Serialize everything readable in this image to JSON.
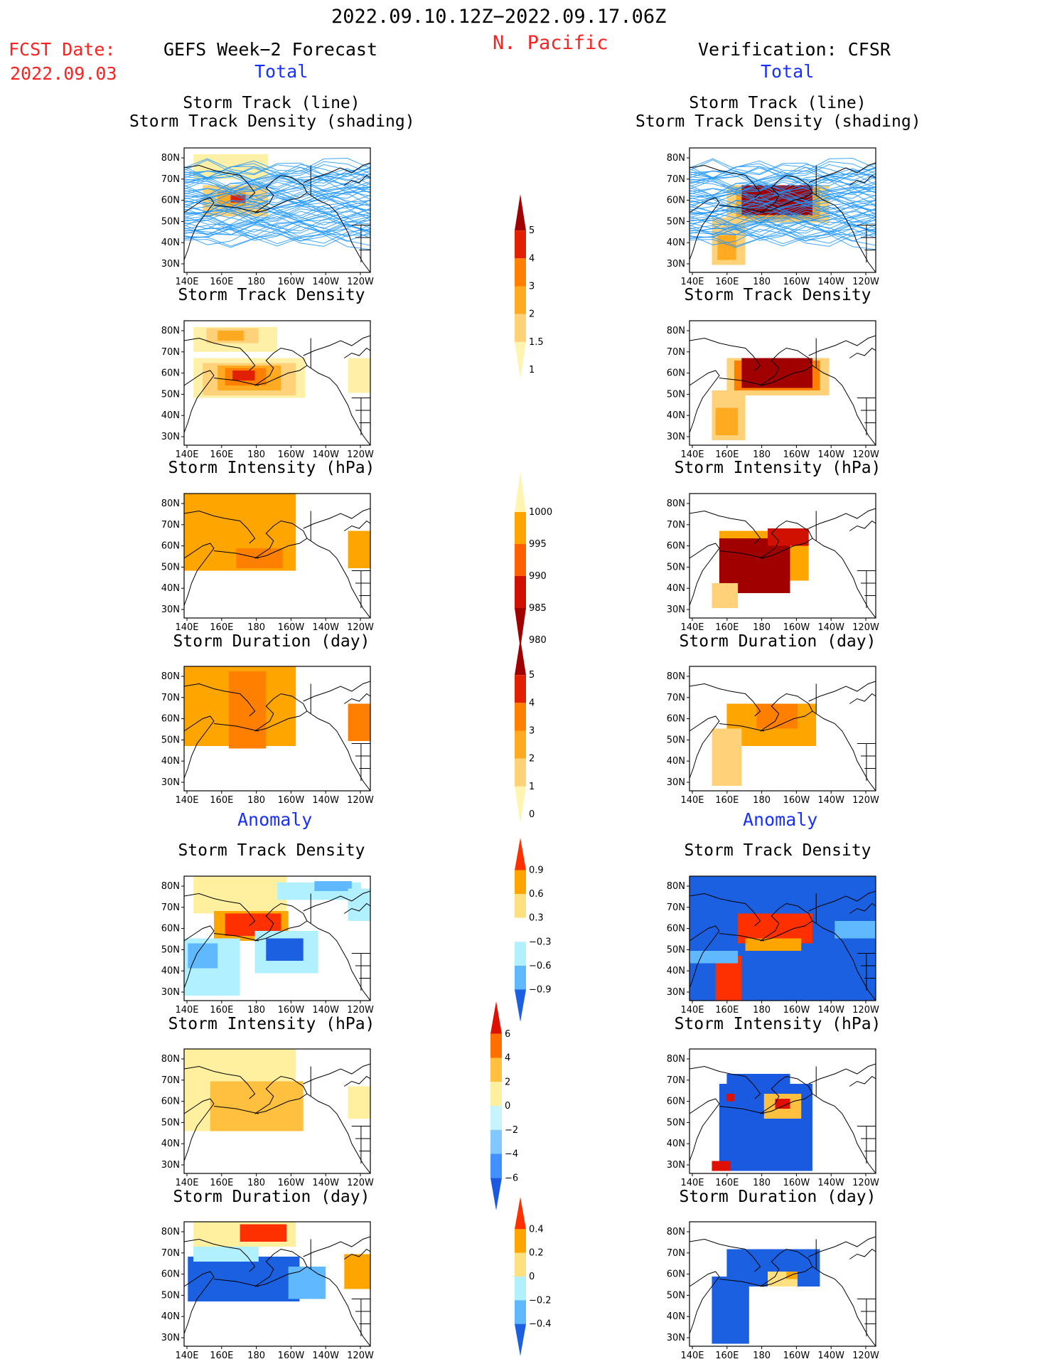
{
  "header": {
    "period": "2022.09.10.12Z−2022.09.17.06Z",
    "region": "N. Pacific",
    "fcst_label": "FCST Date:",
    "fcst_date": "2022.09.03",
    "left_title": "GEFS Week−2 Forecast",
    "right_title": "Verification: CFSR",
    "total_left": "Total",
    "total_right": "Total",
    "anomaly_left": "Anomaly",
    "anomaly_right": "Anomaly"
  },
  "panel_titles": {
    "track1": "Storm Track (line)",
    "track2": "Storm Track Density (shading)",
    "density": "Storm Track Density",
    "intensity": "Storm Intensity (hPa)",
    "duration": "Storm Duration (day)"
  },
  "axes": {
    "lat_labels": [
      "80N",
      "70N",
      "60N",
      "50N",
      "40N",
      "30N"
    ],
    "lon_labels": [
      "140E",
      "160E",
      "180",
      "160W",
      "140W",
      "120W"
    ]
  },
  "colorbars": {
    "density_total": {
      "ticks": [
        "5",
        "4",
        "3",
        "2",
        "1.5",
        "1"
      ],
      "colors": [
        "#a00000",
        "#e02000",
        "#ff7f00",
        "#ffaa20",
        "#ffd27a",
        "#fff5b0"
      ]
    },
    "intensity_total": {
      "ticks": [
        "1000",
        "995",
        "990",
        "985",
        "980"
      ],
      "colors": [
        "#fff5b0",
        "#ffa500",
        "#ff6000",
        "#d01000",
        "#a00000"
      ]
    },
    "duration_total": {
      "ticks": [
        "5",
        "4",
        "3",
        "2",
        "1",
        "0"
      ],
      "colors": [
        "#a00000",
        "#e02000",
        "#ff7f00",
        "#ffaa20",
        "#ffd27a",
        "#fff5b0"
      ]
    },
    "density_anom": {
      "ticks": [
        "0.9",
        "0.6",
        "0.3",
        "−0.3",
        "−0.6",
        "−0.9"
      ],
      "colors": [
        "#ff3000",
        "#ffa500",
        "#ffe080",
        "#ffffff",
        "#b0f0ff",
        "#60b8ff",
        "#1a60e0"
      ]
    },
    "intensity_anom": {
      "ticks": [
        "6",
        "4",
        "2",
        "0",
        "−2",
        "−4",
        "−6"
      ],
      "colors": [
        "#e01000",
        "#ff7000",
        "#ffc040",
        "#fff0a0",
        "#c8f4ff",
        "#80c8ff",
        "#4090ff",
        "#1a5ae0"
      ]
    },
    "duration_anom": {
      "ticks": [
        "0.4",
        "0.2",
        "0",
        "−0.2",
        "−0.4"
      ],
      "colors": [
        "#ff3000",
        "#ffa500",
        "#ffe080",
        "#b0f0ff",
        "#60b8ff",
        "#1a60e0"
      ]
    }
  },
  "colors": {
    "title_red": "#ff2020",
    "label_blue": "#1830ff",
    "track_line": "#1e96ff"
  }
}
